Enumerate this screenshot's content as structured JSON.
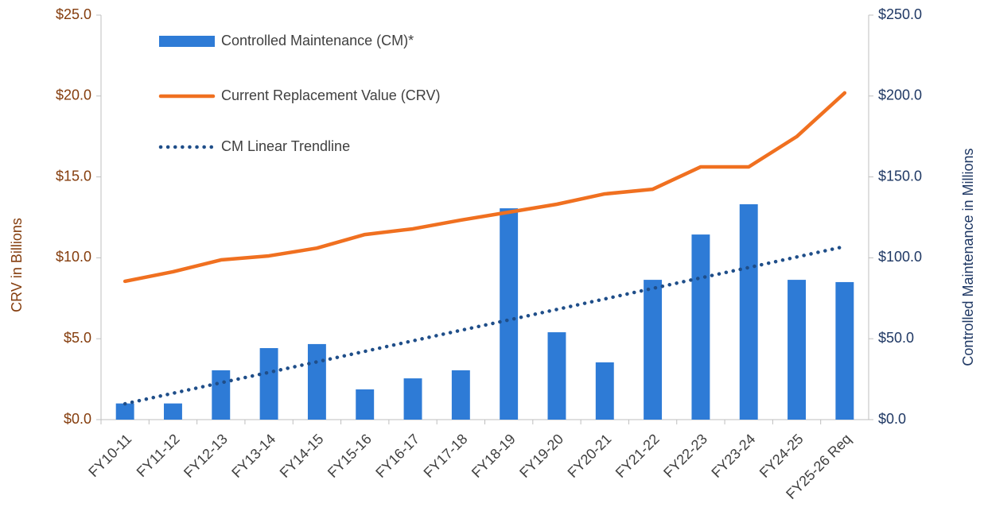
{
  "chart_data": {
    "type": "combo",
    "categories": [
      "FY10-11",
      "FY11-12",
      "FY12-13",
      "FY13-14",
      "FY14-15",
      "FY15-16",
      "FY16-17",
      "FY17-18",
      "FY18-19",
      "FY19-20",
      "FY20-21",
      "FY21-22",
      "FY22-23",
      "FY23-24",
      "FY24-25",
      "FY25-26 Req"
    ],
    "ylabel": "CRV in Billions",
    "y2label": "Controlled Maintenance in Millions",
    "ylim": [
      0,
      25
    ],
    "yticks": [
      {
        "value": 0,
        "label": "$0.0"
      },
      {
        "value": 5,
        "label": "$5.0"
      },
      {
        "value": 10,
        "label": "$10.0"
      },
      {
        "value": 15,
        "label": "$15.0"
      },
      {
        "value": 20,
        "label": "$20.0"
      },
      {
        "value": 25,
        "label": "$25.0"
      }
    ],
    "y2lim": [
      0,
      250
    ],
    "y2ticks": [
      {
        "value": 0,
        "label": "$0.0"
      },
      {
        "value": 50,
        "label": "$50.0"
      },
      {
        "value": 100,
        "label": "$100.0"
      },
      {
        "value": 150,
        "label": "$150.0"
      },
      {
        "value": 200,
        "label": "$200.0"
      },
      {
        "value": 250,
        "label": "$250.0"
      }
    ],
    "ycolor": "#843c0c",
    "y2color": "#1f3864",
    "legend": "upper left",
    "grid": false,
    "series": [
      {
        "name": "Controlled Maintenance (CM)*",
        "type": "bar",
        "axis": "y2",
        "color": "#2e7bd6",
        "values": [
          10,
          10,
          30.5,
          44.2,
          46.7,
          18.7,
          25.5,
          30.5,
          130.6,
          54,
          35.4,
          86.4,
          114.4,
          133.1,
          86.4,
          85
        ]
      },
      {
        "name": "Current Replacement Value (CRV)",
        "type": "line",
        "axis": "y",
        "color": "#f07020",
        "values": [
          8.55,
          9.14,
          9.87,
          10.12,
          10.6,
          11.44,
          11.79,
          12.33,
          12.82,
          13.31,
          13.95,
          14.24,
          15.62,
          15.62,
          17.49,
          20.19
        ]
      },
      {
        "name": "CM Linear Trendline",
        "type": "line",
        "axis": "y2",
        "color": "#1f4e89",
        "style": "dotted",
        "values": [
          9.8,
          16.3,
          22.8,
          29.2,
          35.7,
          42.2,
          48.7,
          55.2,
          61.6,
          68.1,
          74.6,
          81.1,
          87.6,
          94.0,
          100.5,
          107.0
        ]
      }
    ]
  }
}
